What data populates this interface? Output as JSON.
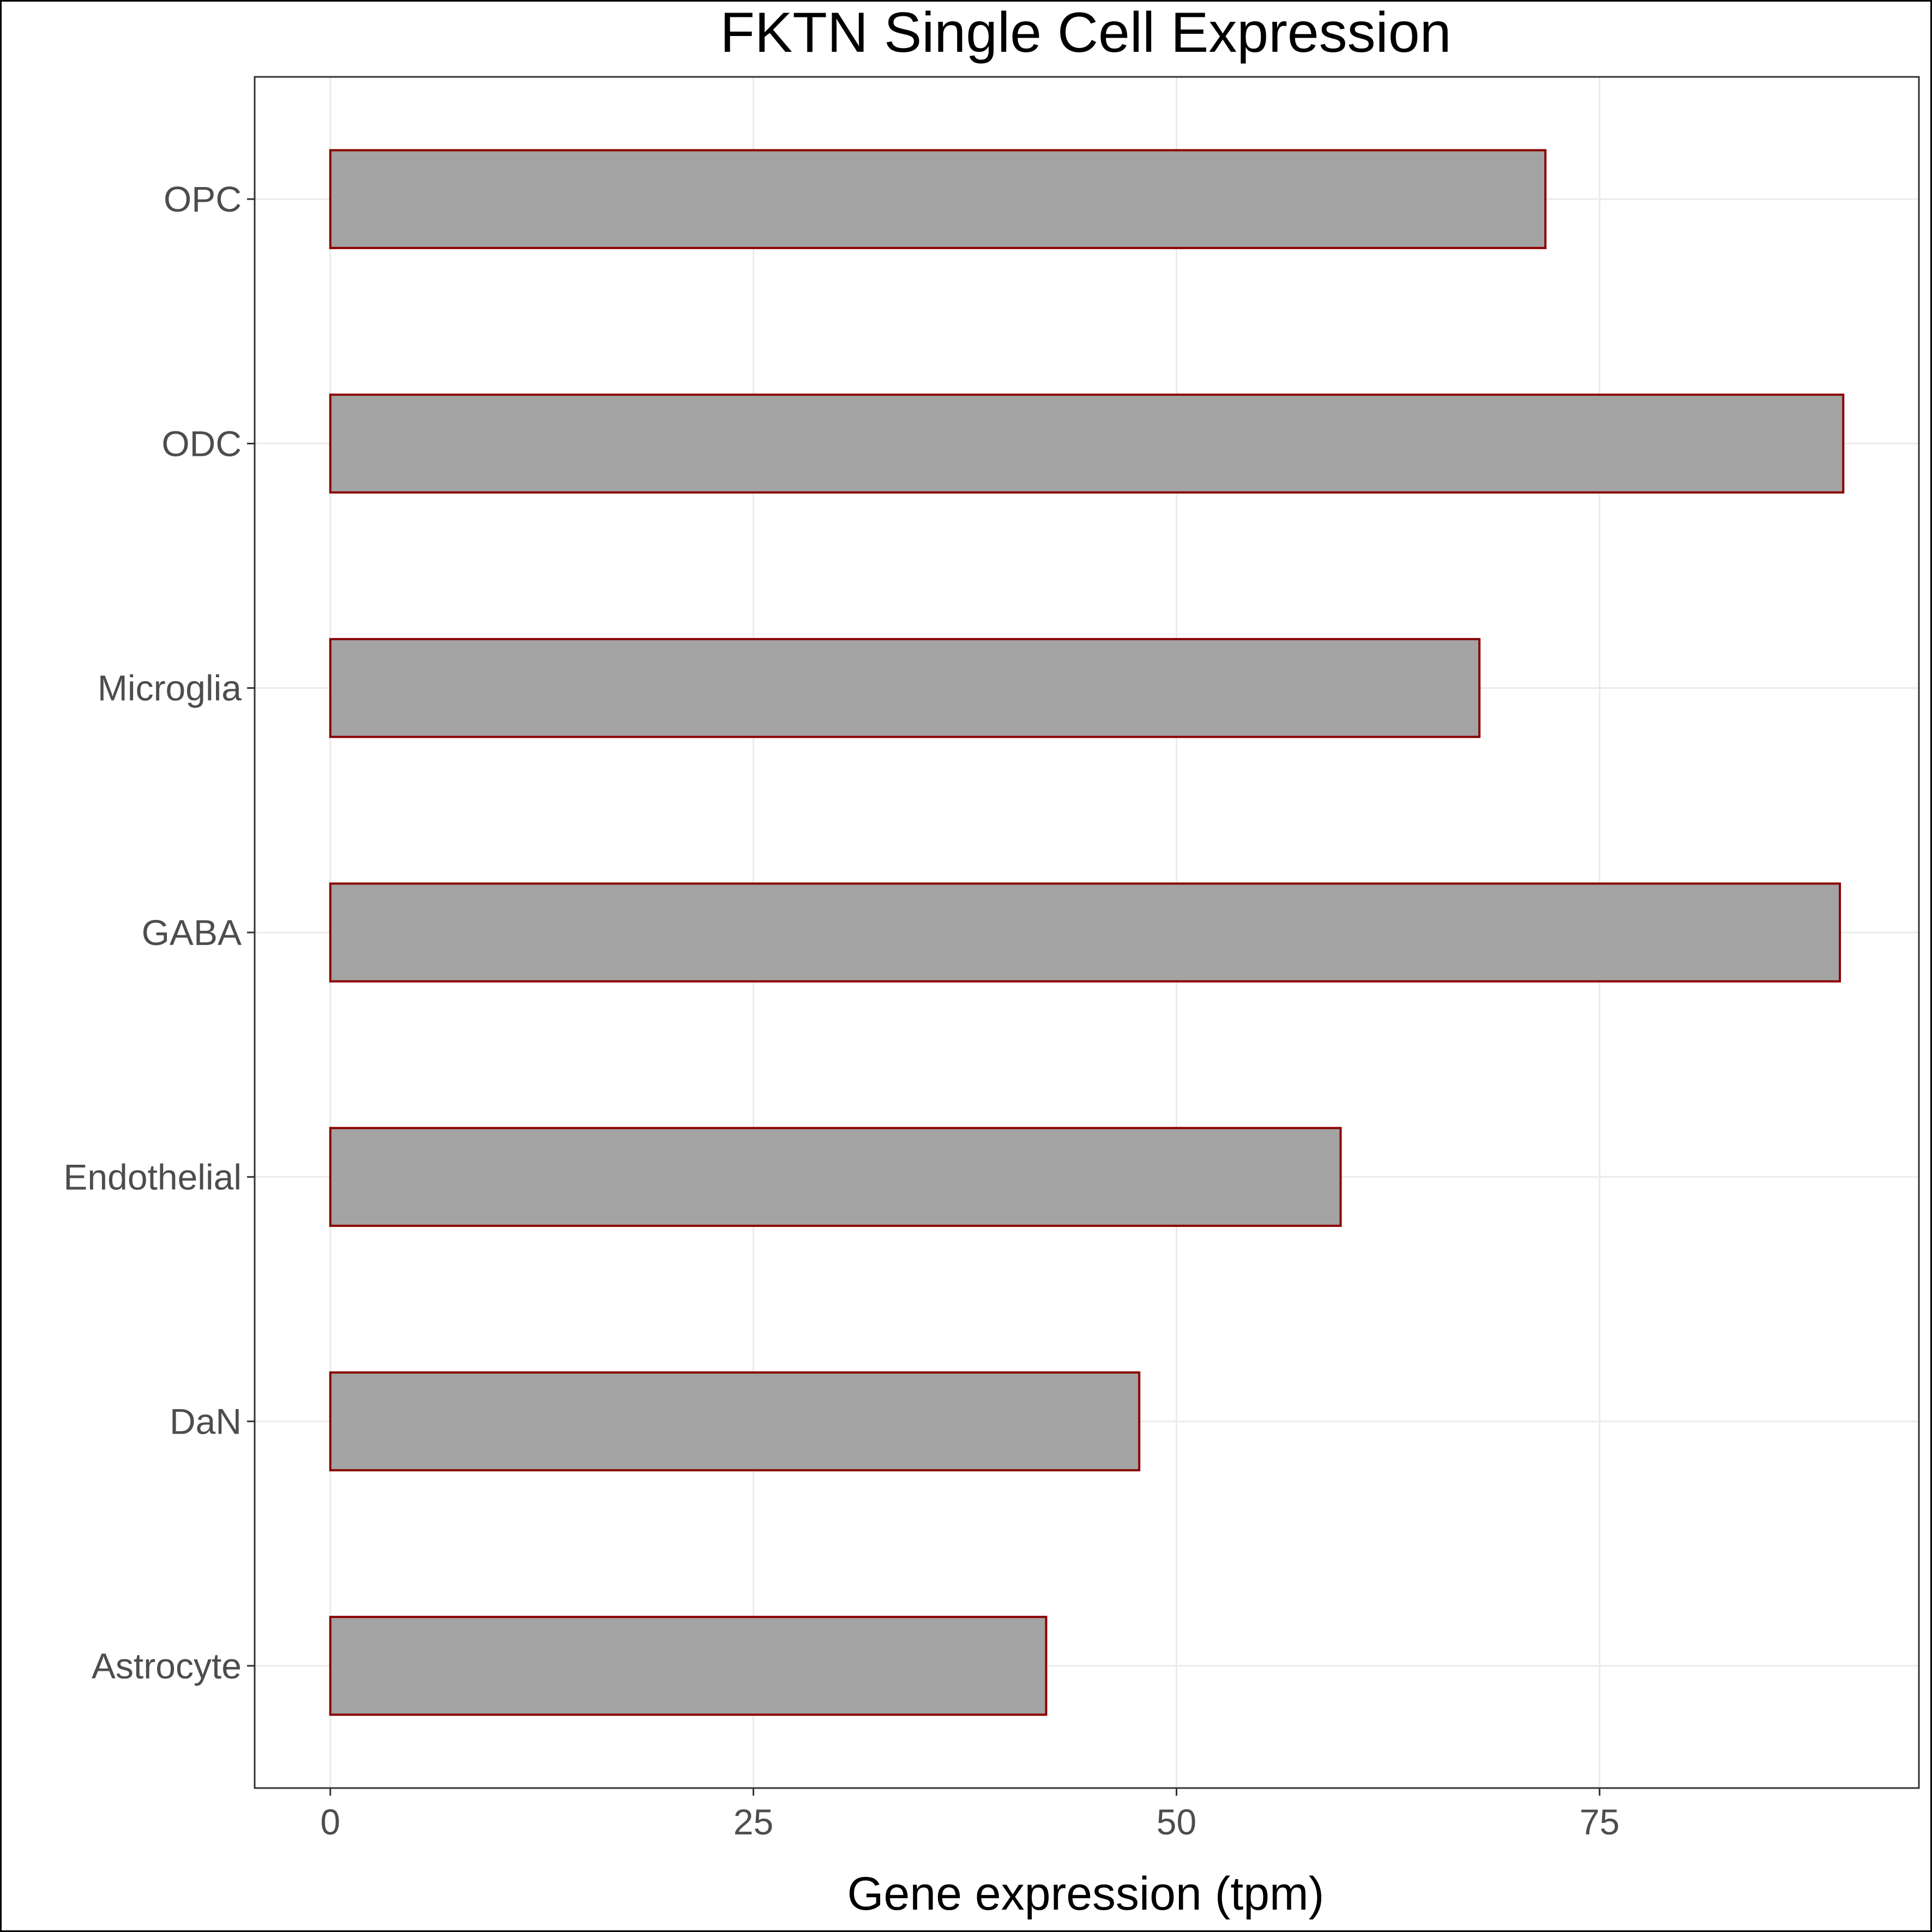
{
  "chart_data": {
    "type": "bar",
    "orientation": "horizontal",
    "title": "FKTN Single Cell Expression",
    "xlabel": "Gene expression (tpm)",
    "ylabel": "",
    "categories": [
      "Astrocyte",
      "DaN",
      "Endothelial",
      "GABA",
      "Microglia",
      "ODC",
      "OPC"
    ],
    "values": [
      42.3,
      47.8,
      59.7,
      89.2,
      67.9,
      89.4,
      71.8
    ],
    "xlim": [
      -4.47,
      93.87
    ],
    "xticks": [
      0,
      25,
      50,
      75
    ],
    "xtick_labels": [
      "0",
      "25",
      "50",
      "75"
    ],
    "grid": true,
    "legend": "none",
    "colors": {
      "bar_fill": "#a3a3a3",
      "bar_stroke": "#8b0000",
      "grid": "#ebebeb",
      "panel_border": "#333333",
      "tick_label": "#4d4d4d",
      "text": "#000000"
    }
  }
}
